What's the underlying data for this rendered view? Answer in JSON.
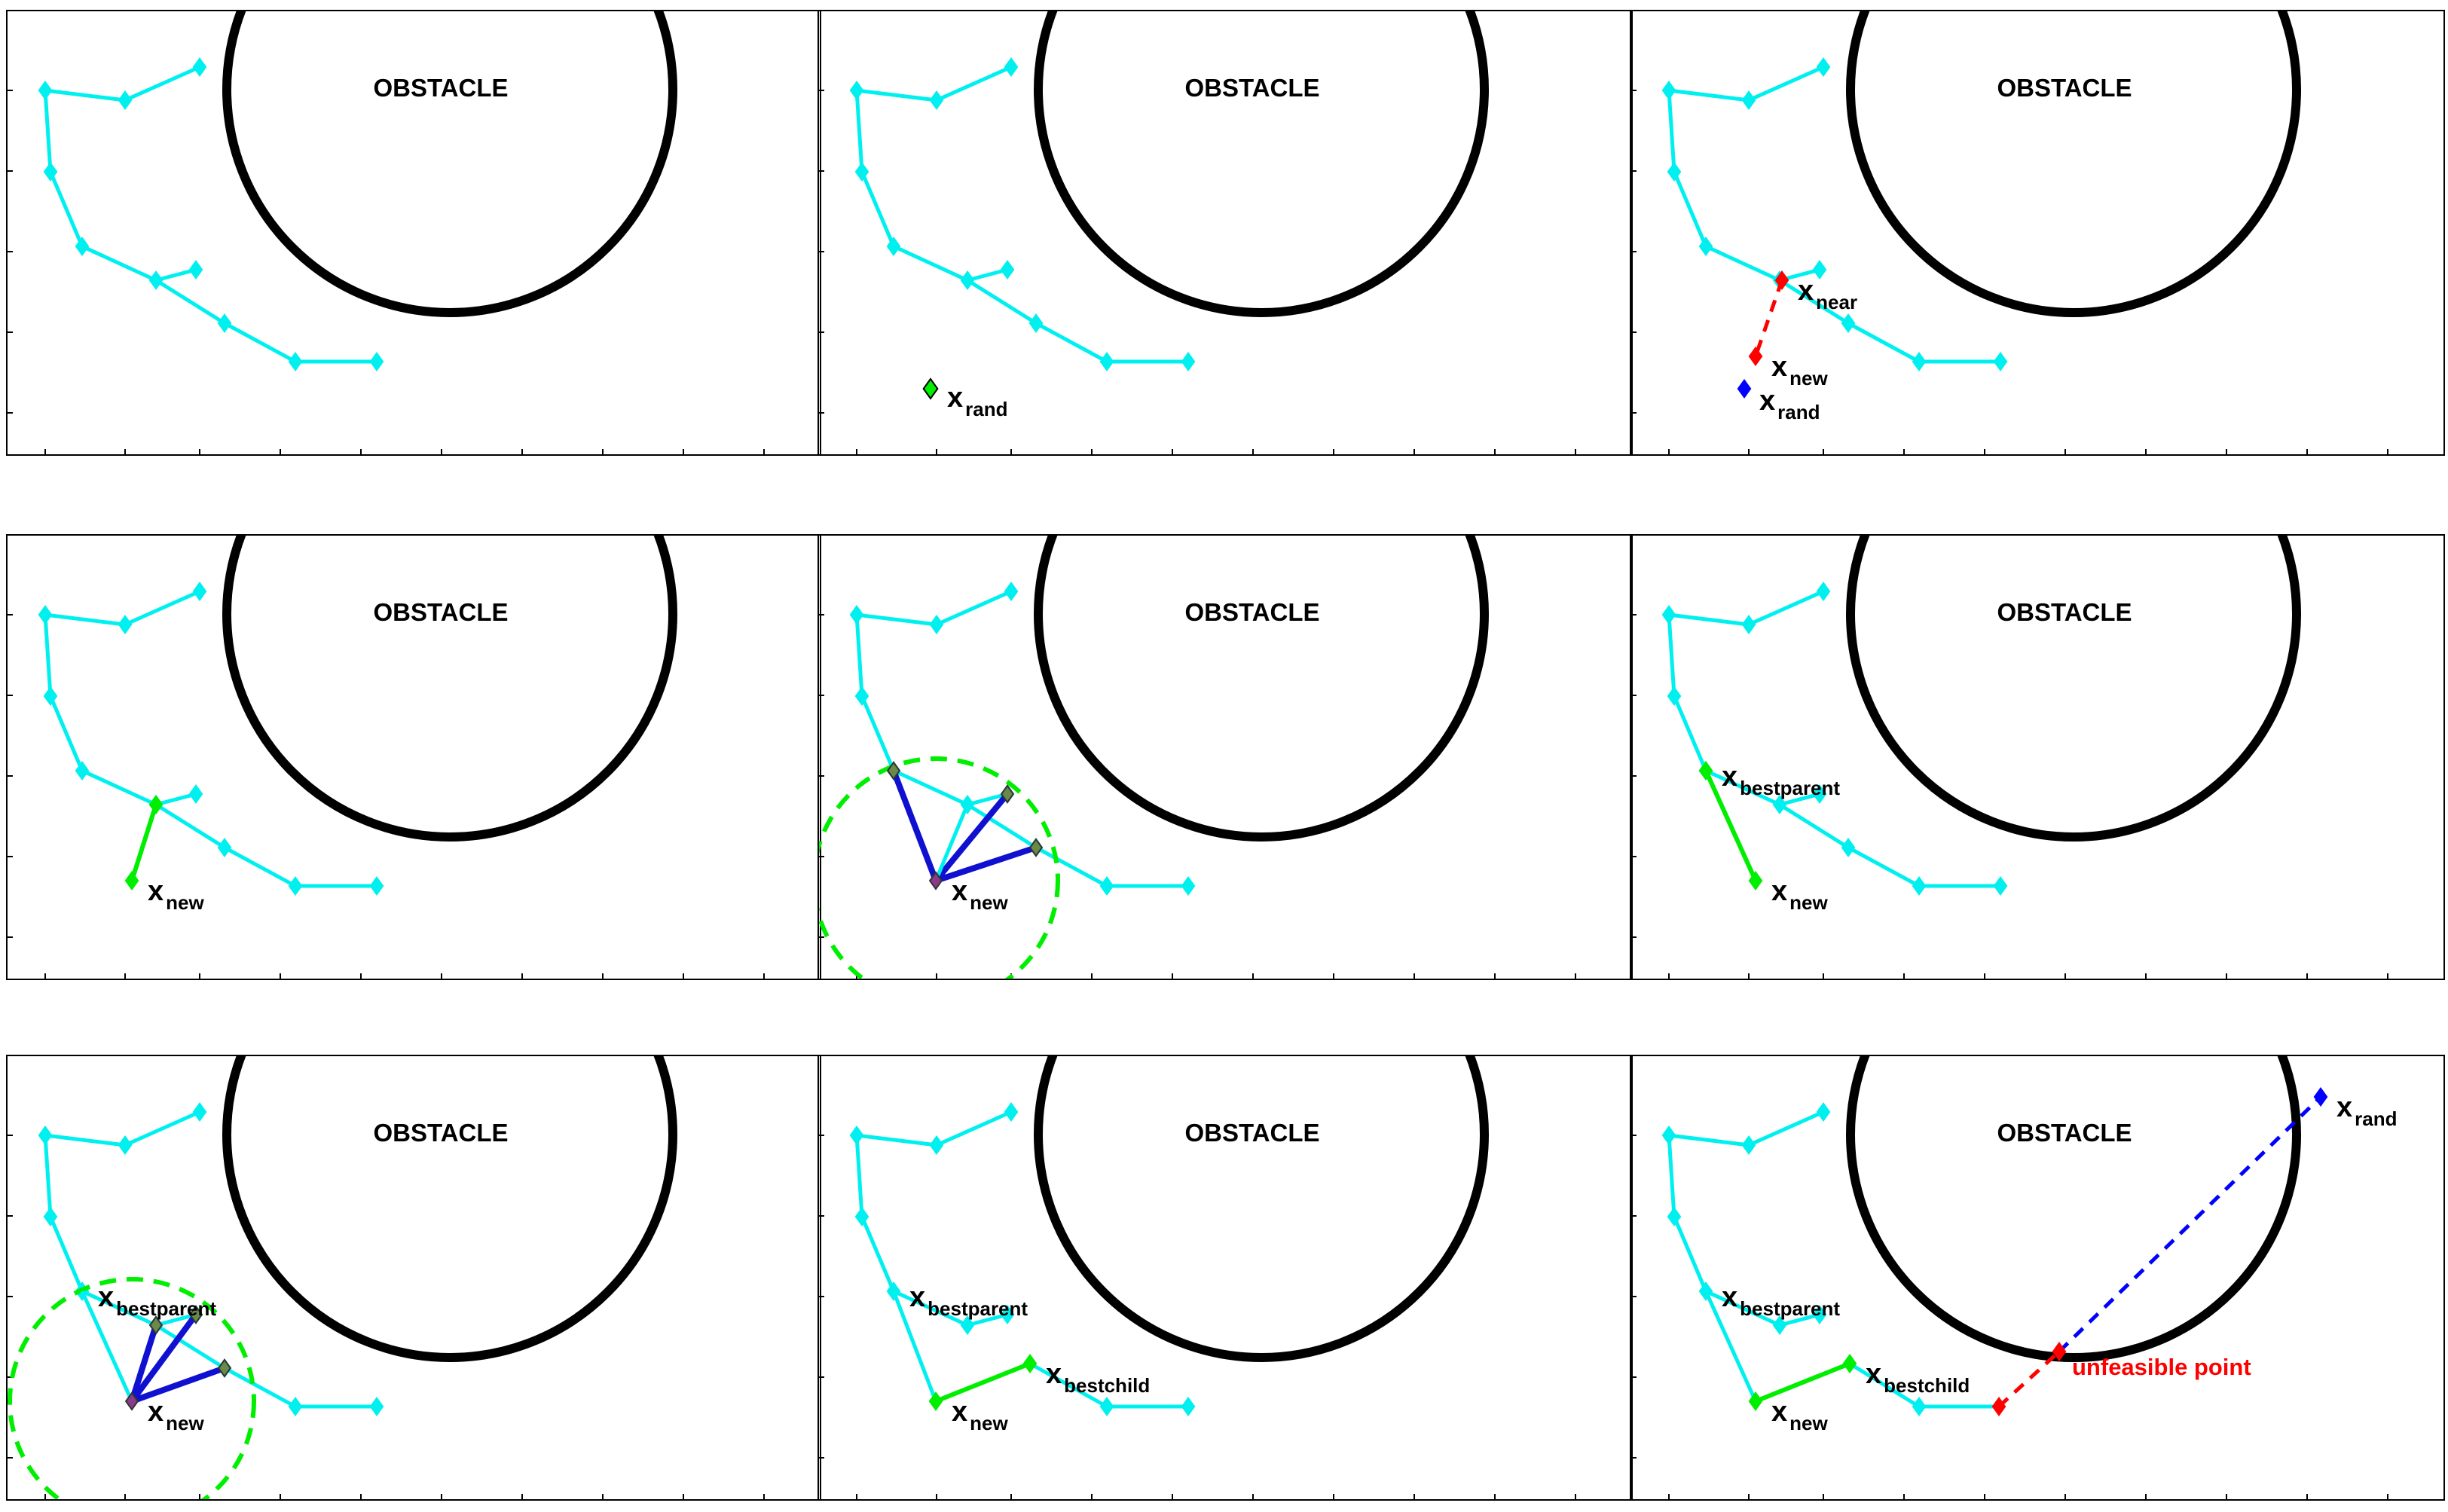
{
  "obstacle_label": "OBSTACLE",
  "colors": {
    "tree": "#00f0f0",
    "green": "#00ee00",
    "red": "#ff0000",
    "blue": "#0000ff",
    "dark_blue": "#1010d0",
    "frame": "#000000"
  },
  "labels": {
    "x": "x",
    "rand": "rand",
    "near": "near",
    "new": "new",
    "bestparent": "bestparent",
    "bestchild": "bestchild",
    "unfeasible": "unfeasible point"
  }
}
